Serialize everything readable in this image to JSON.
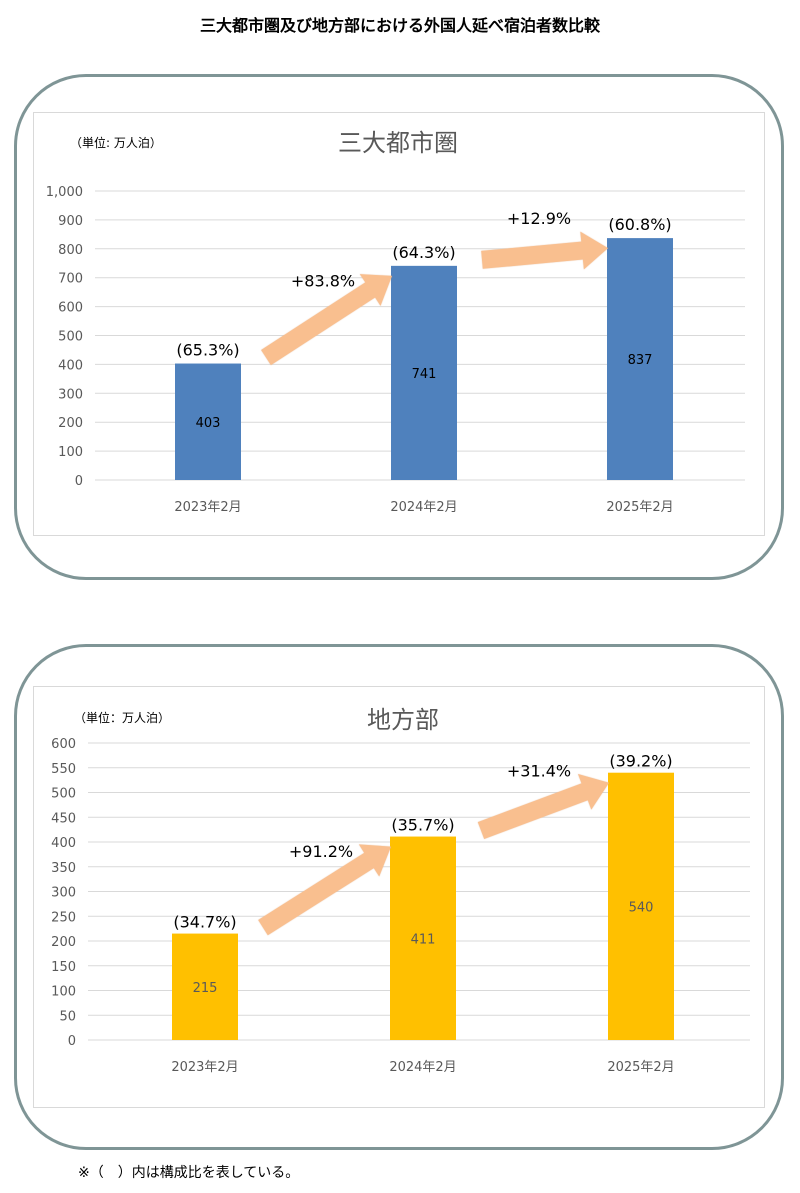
{
  "page_title": "三大都市圏及び地方部における外国人延べ宿泊者数比較",
  "footnote": "※（　）内は構成比を表している。",
  "colors": {
    "arrow": "#f9bf8f",
    "grid": "#d9d9d9",
    "panel_border": "#7f9596"
  },
  "chart_data": [
    {
      "type": "bar",
      "title": "三大都市圏",
      "unit_label": "（単位: 万人泊）",
      "categories": [
        "2023年2月",
        "2024年2月",
        "2025年2月"
      ],
      "values": [
        403,
        741,
        837
      ],
      "value_labels": [
        "403",
        "741",
        "837"
      ],
      "share_labels": [
        "(65.3%)",
        "(64.3%)",
        "(60.8%)"
      ],
      "growth_labels": [
        "+83.8%",
        "+12.9%"
      ],
      "ylim": [
        0,
        1000
      ],
      "yticks": [
        0,
        100,
        200,
        300,
        400,
        500,
        600,
        700,
        800,
        900,
        1000
      ],
      "ytick_labels": [
        "0",
        "100",
        "200",
        "300",
        "400",
        "500",
        "600",
        "700",
        "800",
        "900",
        "1,000"
      ],
      "bar_color": "#4f81bd",
      "value_label_color": "#000000",
      "grid": true
    },
    {
      "type": "bar",
      "title": "地方部",
      "unit_label": "（単位：万人泊）",
      "categories": [
        "2023年2月",
        "2024年2月",
        "2025年2月"
      ],
      "values": [
        215,
        411,
        540
      ],
      "value_labels": [
        "215",
        "411",
        "540"
      ],
      "share_labels": [
        "(34.7%)",
        "(35.7%)",
        "(39.2%)"
      ],
      "growth_labels": [
        "+91.2%",
        "+31.4%"
      ],
      "ylim": [
        0,
        600
      ],
      "yticks": [
        0,
        50,
        100,
        150,
        200,
        250,
        300,
        350,
        400,
        450,
        500,
        550,
        600
      ],
      "ytick_labels": [
        "0",
        "50",
        "100",
        "150",
        "200",
        "250",
        "300",
        "350",
        "400",
        "450",
        "500",
        "550",
        "600"
      ],
      "bar_color": "#ffc000",
      "value_label_color": "#595959",
      "grid": true
    }
  ]
}
